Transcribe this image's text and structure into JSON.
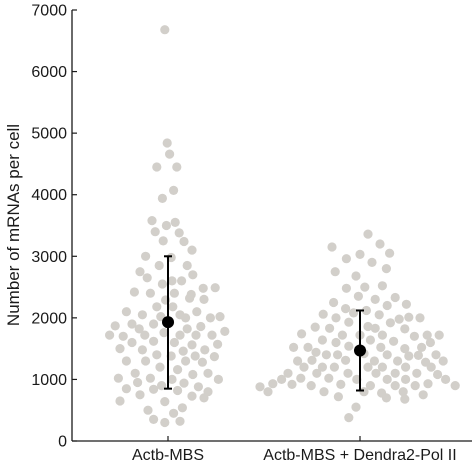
{
  "chart_data": {
    "type": "scatter",
    "subtype": "beeswarm with mean and standard deviation",
    "title": "",
    "xlabel": "",
    "ylabel": "Number of mRNAs per cell",
    "ylim": [
      0,
      7000
    ],
    "yticks": [
      0,
      1000,
      2000,
      3000,
      4000,
      5000,
      6000,
      7000
    ],
    "grid": false,
    "legend": "none",
    "colors": {
      "points": "#d2cfca",
      "summary": "#000000",
      "axis": "#1a1a1a"
    },
    "categories": [
      "Actb-MBS",
      "Actb-MBS + Dendra2-Pol II"
    ],
    "series": [
      {
        "mean": 1930,
        "error_low": 850,
        "error_high": 3000,
        "points": [
          [
            -0.04,
            6680
          ],
          [
            -0.01,
            4840
          ],
          [
            0.02,
            4660
          ],
          [
            -0.14,
            4450
          ],
          [
            0.11,
            4450
          ],
          [
            0.07,
            4070
          ],
          [
            -0.07,
            3940
          ],
          [
            -0.2,
            3580
          ],
          [
            0.09,
            3550
          ],
          [
            -0.16,
            3400
          ],
          [
            -0.02,
            3500
          ],
          [
            0.14,
            3380
          ],
          [
            -0.06,
            3250
          ],
          [
            0.2,
            3240
          ],
          [
            0.3,
            3100
          ],
          [
            -0.28,
            3000
          ],
          [
            0.04,
            2980
          ],
          [
            -0.11,
            2850
          ],
          [
            0.24,
            2850
          ],
          [
            -0.35,
            2750
          ],
          [
            0.31,
            2700
          ],
          [
            -0.26,
            2650
          ],
          [
            0.17,
            2600
          ],
          [
            0.05,
            2600
          ],
          [
            -0.07,
            2550
          ],
          [
            0.44,
            2480
          ],
          [
            -0.42,
            2420
          ],
          [
            -0.22,
            2400
          ],
          [
            0.08,
            2400
          ],
          [
            0.29,
            2380
          ],
          [
            0.59,
            2490
          ],
          [
            0.27,
            2320
          ],
          [
            -0.03,
            2290
          ],
          [
            0.45,
            2300
          ],
          [
            -0.14,
            2180
          ],
          [
            -0.52,
            2100
          ],
          [
            0.06,
            2180
          ],
          [
            0.36,
            2100
          ],
          [
            -0.32,
            2050
          ],
          [
            0.15,
            2050
          ],
          [
            0.53,
            2000
          ],
          [
            -0.09,
            2020
          ],
          [
            0.22,
            2000
          ],
          [
            0.65,
            2020
          ],
          [
            -0.66,
            1870
          ],
          [
            -0.45,
            1900
          ],
          [
            -0.18,
            1900
          ],
          [
            0.02,
            1920
          ],
          [
            0.41,
            1860
          ],
          [
            -0.36,
            1820
          ],
          [
            0.24,
            1820
          ],
          [
            0.71,
            1780
          ],
          [
            -0.73,
            1720
          ],
          [
            -0.56,
            1700
          ],
          [
            -0.29,
            1720
          ],
          [
            -0.05,
            1760
          ],
          [
            0.15,
            1720
          ],
          [
            0.35,
            1720
          ],
          [
            0.55,
            1720
          ],
          [
            -0.45,
            1600
          ],
          [
            -0.18,
            1620
          ],
          [
            0.08,
            1600
          ],
          [
            0.3,
            1560
          ],
          [
            0.62,
            1570
          ],
          [
            -0.6,
            1500
          ],
          [
            -0.32,
            1480
          ],
          [
            0.19,
            1460
          ],
          [
            0.46,
            1480
          ],
          [
            -0.14,
            1400
          ],
          [
            0.04,
            1380
          ],
          [
            0.34,
            1380
          ],
          [
            0.58,
            1370
          ],
          [
            -0.52,
            1300
          ],
          [
            -0.28,
            1300
          ],
          [
            0.22,
            1300
          ],
          [
            0.43,
            1280
          ],
          [
            -0.1,
            1200
          ],
          [
            0.12,
            1160
          ],
          [
            -0.41,
            1100
          ],
          [
            0.31,
            1080
          ],
          [
            0.5,
            1100
          ],
          [
            -0.62,
            1020
          ],
          [
            -0.22,
            1020
          ],
          [
            0.05,
            1000
          ],
          [
            0.63,
            1000
          ],
          [
            -0.38,
            950
          ],
          [
            0.2,
            940
          ],
          [
            -0.08,
            900
          ],
          [
            0.38,
            880
          ],
          [
            -0.52,
            850
          ],
          [
            -0.18,
            840
          ],
          [
            0.12,
            820
          ],
          [
            0.5,
            800
          ],
          [
            -0.35,
            750
          ],
          [
            0.3,
            730
          ],
          [
            -0.6,
            650
          ],
          [
            -0.04,
            640
          ],
          [
            0.45,
            700
          ],
          [
            0.18,
            540
          ],
          [
            -0.25,
            500
          ],
          [
            0.07,
            450
          ],
          [
            -0.18,
            350
          ],
          [
            -0.04,
            300
          ],
          [
            0.15,
            320
          ]
        ]
      },
      {
        "mean": 1470,
        "error_low": 820,
        "error_high": 2120,
        "points": [
          [
            0.1,
            3360
          ],
          [
            0.25,
            3200
          ],
          [
            -0.35,
            3150
          ],
          [
            0.37,
            3050
          ],
          [
            0.0,
            3030
          ],
          [
            -0.17,
            2960
          ],
          [
            0.15,
            2900
          ],
          [
            0.33,
            2800
          ],
          [
            -0.31,
            2750
          ],
          [
            -0.05,
            2680
          ],
          [
            0.06,
            2500
          ],
          [
            -0.17,
            2480
          ],
          [
            0.28,
            2520
          ],
          [
            -0.02,
            2350
          ],
          [
            0.19,
            2300
          ],
          [
            0.44,
            2330
          ],
          [
            -0.33,
            2250
          ],
          [
            0.34,
            2200
          ],
          [
            0.58,
            2220
          ],
          [
            -0.18,
            2150
          ],
          [
            0.08,
            2120
          ],
          [
            -0.08,
            2080
          ],
          [
            -0.46,
            2060
          ],
          [
            0.24,
            2050
          ],
          [
            0.61,
            2010
          ],
          [
            0.75,
            2000
          ],
          [
            -0.3,
            2000
          ],
          [
            0.49,
            1980
          ],
          [
            -0.14,
            1930
          ],
          [
            0.38,
            1920
          ],
          [
            -0.56,
            1850
          ],
          [
            -0.38,
            1830
          ],
          [
            0.1,
            1860
          ],
          [
            0.19,
            1830
          ],
          [
            0.56,
            1820
          ],
          [
            0.84,
            1720
          ],
          [
            -0.73,
            1740
          ],
          [
            -0.22,
            1720
          ],
          [
            0.0,
            1720
          ],
          [
            0.28,
            1720
          ],
          [
            0.68,
            1700
          ],
          [
            0.99,
            1720
          ],
          [
            -0.47,
            1640
          ],
          [
            -0.3,
            1600
          ],
          [
            0.13,
            1640
          ],
          [
            0.42,
            1620
          ],
          [
            0.88,
            1600
          ],
          [
            -0.83,
            1520
          ],
          [
            -0.65,
            1520
          ],
          [
            -0.14,
            1540
          ],
          [
            0.26,
            1520
          ],
          [
            0.56,
            1500
          ],
          [
            0.77,
            1520
          ],
          [
            0.95,
            1400
          ],
          [
            -0.55,
            1440
          ],
          [
            -0.42,
            1400
          ],
          [
            -0.28,
            1400
          ],
          [
            0.05,
            1420
          ],
          [
            0.34,
            1400
          ],
          [
            0.61,
            1380
          ],
          [
            0.73,
            1390
          ],
          [
            -0.78,
            1300
          ],
          [
            -0.6,
            1310
          ],
          [
            -0.18,
            1310
          ],
          [
            0.18,
            1300
          ],
          [
            0.47,
            1300
          ],
          [
            0.82,
            1280
          ],
          [
            1.04,
            1300
          ],
          [
            -0.7,
            1200
          ],
          [
            -0.47,
            1200
          ],
          [
            -0.32,
            1200
          ],
          [
            0.1,
            1200
          ],
          [
            0.28,
            1200
          ],
          [
            0.57,
            1200
          ],
          [
            0.89,
            1200
          ],
          [
            -0.9,
            1100
          ],
          [
            -0.54,
            1100
          ],
          [
            -0.15,
            1100
          ],
          [
            0.2,
            1100
          ],
          [
            0.44,
            1100
          ],
          [
            0.71,
            1100
          ],
          [
            0.97,
            1080
          ],
          [
            -0.98,
            1000
          ],
          [
            -0.74,
            1020
          ],
          [
            -0.39,
            1020
          ],
          [
            -0.04,
            1000
          ],
          [
            0.34,
            1000
          ],
          [
            0.57,
            1000
          ],
          [
            1.07,
            1000
          ],
          [
            -1.09,
            930
          ],
          [
            -0.85,
            920
          ],
          [
            -0.61,
            900
          ],
          [
            -0.24,
            920
          ],
          [
            0.13,
            900
          ],
          [
            0.44,
            900
          ],
          [
            0.69,
            900
          ],
          [
            0.85,
            930
          ],
          [
            1.19,
            900
          ],
          [
            -1.25,
            880
          ],
          [
            -1.15,
            800
          ],
          [
            -0.45,
            800
          ],
          [
            0.05,
            800
          ],
          [
            0.27,
            780
          ],
          [
            0.54,
            800
          ],
          [
            0.79,
            750
          ],
          [
            -0.27,
            720
          ],
          [
            0.33,
            700
          ],
          [
            0.56,
            680
          ],
          [
            -0.05,
            550
          ],
          [
            -0.14,
            380
          ]
        ]
      }
    ]
  },
  "axis": {
    "y_tick_labels": [
      "0",
      "1000",
      "2000",
      "3000",
      "4000",
      "5000",
      "6000",
      "7000"
    ],
    "x_tick_labels": [
      "Actb-MBS",
      "Actb-MBS + Dendra2-Pol II"
    ]
  }
}
